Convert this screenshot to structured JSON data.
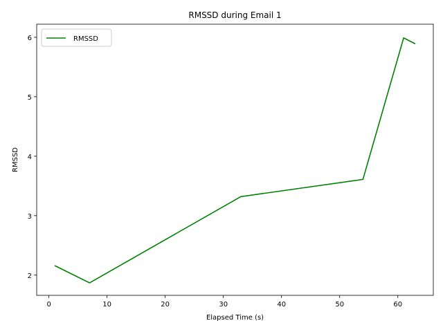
{
  "chart_data": {
    "type": "line",
    "title": "RMSSD during Email 1",
    "xlabel": "Elapsed Time (s)",
    "ylabel": "RMSSD",
    "xlim": [
      -2.1,
      66.1
    ],
    "ylim": [
      1.66,
      6.22
    ],
    "x_ticks": [
      0,
      10,
      20,
      30,
      40,
      50,
      60
    ],
    "y_ticks": [
      2,
      3,
      4,
      5,
      6
    ],
    "grid": false,
    "legend_position": "upper-left",
    "series": [
      {
        "name": "RMSSD",
        "color": "#008000",
        "x": [
          1,
          7,
          33,
          54,
          61,
          63
        ],
        "y": [
          2.16,
          1.87,
          3.32,
          3.61,
          5.99,
          5.89
        ]
      }
    ]
  }
}
